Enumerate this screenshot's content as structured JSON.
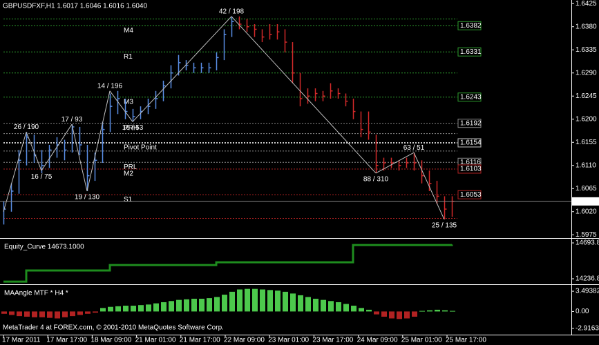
{
  "chart_data": [
    {
      "type": "ohlc",
      "title": "GBPUSDFXF,H1  1.6017 1.6046 1.6016 1.6040",
      "series": [
        {
          "color": "#5a8ee6",
          "high": [
            1.604,
            1.6075,
            1.614,
            1.6175,
            1.617,
            1.614,
            1.615,
            1.6165,
            1.616,
            1.619,
            1.6185,
            1.615,
            1.6135,
            1.6195,
            1.625,
            1.6255,
            1.624,
            1.622,
            1.6225,
            1.624,
            1.6255,
            1.6275,
            1.6305,
            1.6325,
            1.6315,
            1.631,
            1.631,
            1.631,
            1.633,
            1.6375,
            1.64
          ],
          "low": [
            1.5995,
            1.602,
            1.6055,
            1.611,
            1.6115,
            1.6095,
            1.6105,
            1.6125,
            1.612,
            1.6135,
            1.613,
            1.606,
            1.608,
            1.6115,
            1.6175,
            1.621,
            1.62,
            1.6195,
            1.62,
            1.621,
            1.622,
            1.6235,
            1.626,
            1.6285,
            1.6295,
            1.629,
            1.629,
            1.629,
            1.6295,
            1.6315,
            1.636
          ],
          "close": [
            1.6025,
            1.606,
            1.612,
            1.6165,
            1.613,
            1.611,
            1.614,
            1.615,
            1.614,
            1.6185,
            1.615,
            1.609,
            1.612,
            1.618,
            1.6225,
            1.624,
            1.6215,
            1.6205,
            1.6215,
            1.6225,
            1.624,
            1.6265,
            1.629,
            1.631,
            1.6305,
            1.63,
            1.63,
            1.63,
            1.632,
            1.6365,
            1.639
          ]
        },
        {
          "color": "#d42a2a",
          "high": [
            1.64,
            1.6395,
            1.6385,
            1.6375,
            1.6385,
            1.6385,
            1.6375,
            1.635,
            1.629,
            1.626,
            1.626,
            1.6255,
            1.627,
            1.626,
            1.625,
            1.624,
            1.6215,
            1.6215,
            1.617,
            1.6125,
            1.6125,
            1.612,
            1.6125,
            1.6135,
            1.612,
            1.61,
            1.608,
            1.605,
            1.605
          ],
          "low": [
            1.6375,
            1.637,
            1.636,
            1.635,
            1.6355,
            1.6355,
            1.633,
            1.627,
            1.6225,
            1.623,
            1.6235,
            1.6235,
            1.624,
            1.624,
            1.6225,
            1.62,
            1.6165,
            1.616,
            1.6095,
            1.61,
            1.6105,
            1.61,
            1.6105,
            1.61,
            1.6075,
            1.606,
            1.6035,
            1.6005,
            1.601
          ],
          "close": [
            1.6385,
            1.638,
            1.6375,
            1.636,
            1.6365,
            1.637,
            1.635,
            1.629,
            1.624,
            1.6245,
            1.625,
            1.6245,
            1.6255,
            1.625,
            1.6235,
            1.6215,
            1.618,
            1.6175,
            1.611,
            1.6115,
            1.6115,
            1.611,
            1.6115,
            1.6115,
            1.609,
            1.6075,
            1.605,
            1.6025,
            1.604
          ]
        }
      ],
      "ylim": [
        1.597,
        1.6432
      ],
      "yticks": [
        1.6425,
        {
          "value": 1.638,
          "label": "1.6380"
        },
        1.6335,
        {
          "value": 1.629,
          "label": "1.6290"
        },
        1.6245,
        {
          "value": 1.62,
          "label": "1.6200"
        },
        1.6155,
        {
          "value": 1.611,
          "label": "1.6110"
        },
        1.6065,
        {
          "value": 1.602,
          "label": "1.6020"
        },
        1.5975
      ],
      "current_price": {
        "value": 1.604,
        "label": "1.6040"
      },
      "levels": [
        {
          "label": "M4",
          "value": 1.6382,
          "color": "#2e9e2e"
        },
        {
          "label": "R1",
          "value": 1.6331,
          "color": "#2e9e2e"
        },
        {
          "label": "M3",
          "value": 1.6243,
          "color": "#2e9e2e"
        },
        {
          "label": "PRH",
          "value": 1.6192,
          "color": "#8c8c8c"
        },
        {
          "label": "Pivot Point",
          "value": 1.6154,
          "color": "#c8c8c8"
        },
        {
          "label": "PRL",
          "value": 1.6116,
          "color": "#8c8c8c"
        },
        {
          "label": "M2",
          "value": 1.6103,
          "color": "#b22222"
        },
        {
          "label": "S1",
          "value": 1.6053,
          "color": "#b22222"
        }
      ],
      "unlabeled_levels": [
        {
          "value": 1.6395,
          "color": "#2e9e2e"
        },
        {
          "value": 1.629,
          "color": "#2e9e2e"
        },
        {
          "value": 1.6172,
          "color": "#8c8c8c"
        },
        {
          "value": 1.6138,
          "color": "#8c8c8c"
        },
        {
          "value": 1.6007,
          "color": "#b22222"
        }
      ],
      "zigzag": {
        "color": "#c0c0c0",
        "values": [
          1.602,
          null,
          null,
          1.6175,
          null,
          1.61,
          null,
          null,
          null,
          1.619,
          null,
          1.606,
          null,
          null,
          1.6255,
          null,
          null,
          1.6195,
          null,
          null,
          null,
          null,
          null,
          null,
          null,
          null,
          null,
          null,
          null,
          null,
          1.64,
          null,
          null,
          null,
          null,
          null,
          null,
          null,
          null,
          null,
          null,
          null,
          null,
          null,
          null,
          null,
          null,
          null,
          null,
          1.6095,
          null,
          null,
          null,
          null,
          1.6135,
          null,
          null,
          null,
          1.6005,
          null
        ],
        "labels": [
          null,
          null,
          null,
          "26 / 190",
          null,
          "16 / 75",
          null,
          null,
          null,
          "17 / 93",
          null,
          "19 / 130",
          null,
          null,
          "14 / 196",
          null,
          null,
          "16 / 53",
          null,
          null,
          null,
          null,
          null,
          null,
          null,
          null,
          null,
          null,
          null,
          null,
          "42 / 198",
          null,
          null,
          null,
          null,
          null,
          null,
          null,
          null,
          null,
          null,
          null,
          null,
          null,
          null,
          null,
          null,
          null,
          null,
          "88 / 310",
          null,
          null,
          null,
          null,
          "63 / 51",
          null,
          null,
          null,
          "25 / 135",
          null
        ],
        "label_colors": [
          null,
          null,
          null,
          "#00e0e0",
          null,
          "#00e0e0",
          null,
          null,
          null,
          "#00e0e0",
          null,
          "#00e0e0",
          null,
          null,
          "#00e0e0",
          null,
          null,
          "#00e0e0",
          null,
          null,
          null,
          null,
          null,
          null,
          null,
          null,
          null,
          null,
          null,
          null,
          "#00e0e0",
          null,
          null,
          null,
          null,
          null,
          null,
          null,
          null,
          null,
          null,
          null,
          null,
          null,
          null,
          null,
          null,
          null,
          null,
          "#00e0e0",
          null,
          null,
          null,
          null,
          "#00e0e0",
          null,
          null,
          null,
          "#ffff00",
          null
        ]
      }
    },
    {
      "type": "line",
      "title": "Equity_Curve 14673.1000",
      "color": "#1e8c1e",
      "values": [
        14201,
        14201,
        14201,
        14342,
        14342,
        14342,
        14342,
        14342,
        14342,
        14342,
        14342,
        14342,
        14342,
        14342,
        14412,
        14412,
        14412,
        14412,
        14412,
        14412,
        14412,
        14412,
        14412,
        14412,
        14412,
        14412,
        14412,
        14412,
        14447,
        14447,
        14447,
        14447,
        14447,
        14447,
        14447,
        14447,
        14447,
        14447,
        14447,
        14447,
        14447,
        14447,
        14447,
        14447,
        14447,
        14447,
        14667,
        14667,
        14667,
        14667,
        14667,
        14667,
        14667,
        14667,
        14667,
        14667,
        14667,
        14667,
        14667,
        14673.1
      ],
      "ylim": [
        14184,
        14738
      ],
      "yticks": [
        14693.8,
        14236.8
      ]
    },
    {
      "type": "bar",
      "title": "MAAngle MTF * H4 *",
      "pos_color": "#4cc84c",
      "neg_color": "#b22222",
      "values": [
        -0.4,
        -0.6,
        -0.8,
        -0.9,
        -1.0,
        -1.0,
        -1.1,
        -1.2,
        -1.0,
        -0.8,
        -0.6,
        -0.4,
        -0.2,
        0.6,
        0.8,
        0.9,
        1.0,
        1.0,
        1.1,
        1.2,
        1.4,
        1.6,
        1.8,
        2.0,
        2.1,
        2.2,
        2.2,
        2.3,
        2.5,
        2.9,
        3.4,
        3.8,
        3.9,
        3.9,
        3.8,
        3.7,
        3.6,
        3.4,
        3.1,
        2.8,
        2.5,
        2.2,
        2.0,
        1.8,
        1.6,
        1.3,
        1.0,
        0.6,
        0.3,
        -0.5,
        -0.9,
        -1.2,
        -1.3,
        -1.2,
        -0.9,
        0.1,
        0.2,
        0.3,
        0.2,
        0.1
      ],
      "ylim": [
        -4.0,
        4.337
      ],
      "yticks": [
        3.49382,
        {
          "value": 0,
          "label": "0.00"
        },
        -2.91637
      ]
    }
  ],
  "time_axis": [
    "17 Mar 2011",
    "17 Mar 17:00",
    "18 Mar 09:00",
    "21 Mar 01:00",
    "21 Mar 17:00",
    "22 Mar 09:00",
    "23 Mar 01:00",
    "23 Mar 17:00",
    "24 Mar 09:00",
    "25 Mar 01:00",
    "25 Mar 17:00"
  ],
  "footer": "MetaTrader 4 at FOREX.com, © 2001-2010 MetaQuotes Software Corp."
}
